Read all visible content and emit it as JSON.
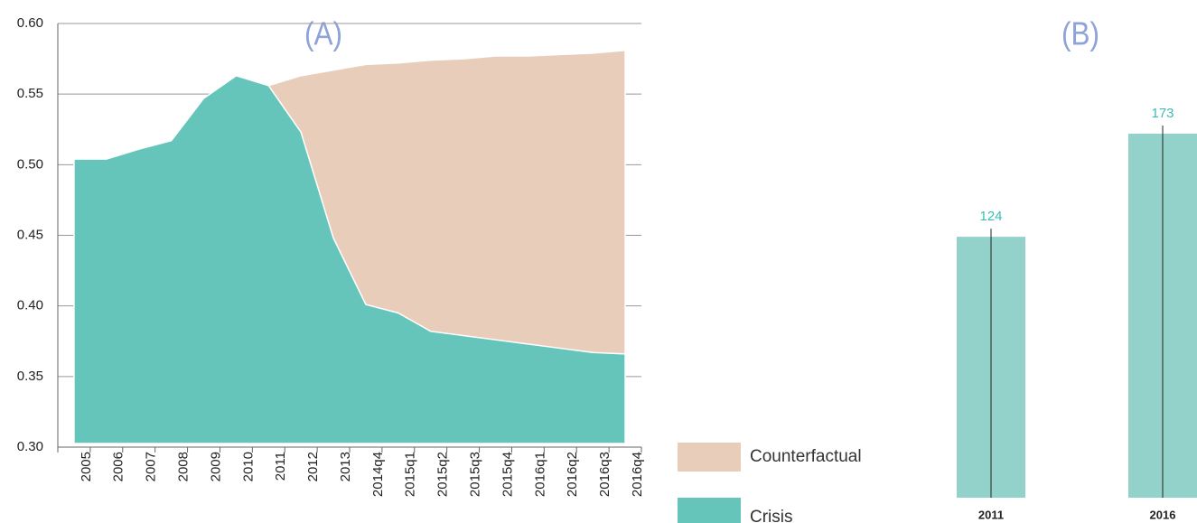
{
  "chart_data": [
    {
      "type": "area",
      "title": "(A)",
      "categories": [
        "2005",
        "2006",
        "2007",
        "2008",
        "2009",
        "2010",
        "2011",
        "2012",
        "2013",
        "2014q4",
        "2015q1",
        "2015q2",
        "2015q3",
        "2015q4",
        "2016q1",
        "2016q2",
        "2016q3",
        "2016q4"
      ],
      "series": [
        {
          "name": "Counterfactual",
          "color": "#e9cdbb",
          "values": [
            null,
            null,
            null,
            null,
            null,
            null,
            0.556,
            0.563,
            0.567,
            0.571,
            0.572,
            0.574,
            0.575,
            0.577,
            0.577,
            0.578,
            0.579,
            0.581
          ]
        },
        {
          "name": "Crisis",
          "color": "#66c5bb",
          "values": [
            0.504,
            0.504,
            0.511,
            0.517,
            0.547,
            0.563,
            0.556,
            0.523,
            0.448,
            0.401,
            0.395,
            0.382,
            0.379,
            0.376,
            0.373,
            0.37,
            0.367,
            0.366
          ]
        }
      ],
      "ylim": [
        0.3,
        0.6
      ],
      "yticks": [
        {
          "value": 0.3,
          "label": "0.30"
        },
        0.35,
        {
          "value": 0.4,
          "label": "0.40"
        },
        0.45,
        {
          "value": 0.5,
          "label": "0.50"
        },
        0.55,
        {
          "value": 0.6,
          "label": "0.60"
        }
      ],
      "grid": true
    },
    {
      "type": "bar",
      "title": "(B)",
      "categories": [
        "2011",
        "2016"
      ],
      "values": [
        124,
        173
      ],
      "color": "#93d2cb"
    }
  ]
}
